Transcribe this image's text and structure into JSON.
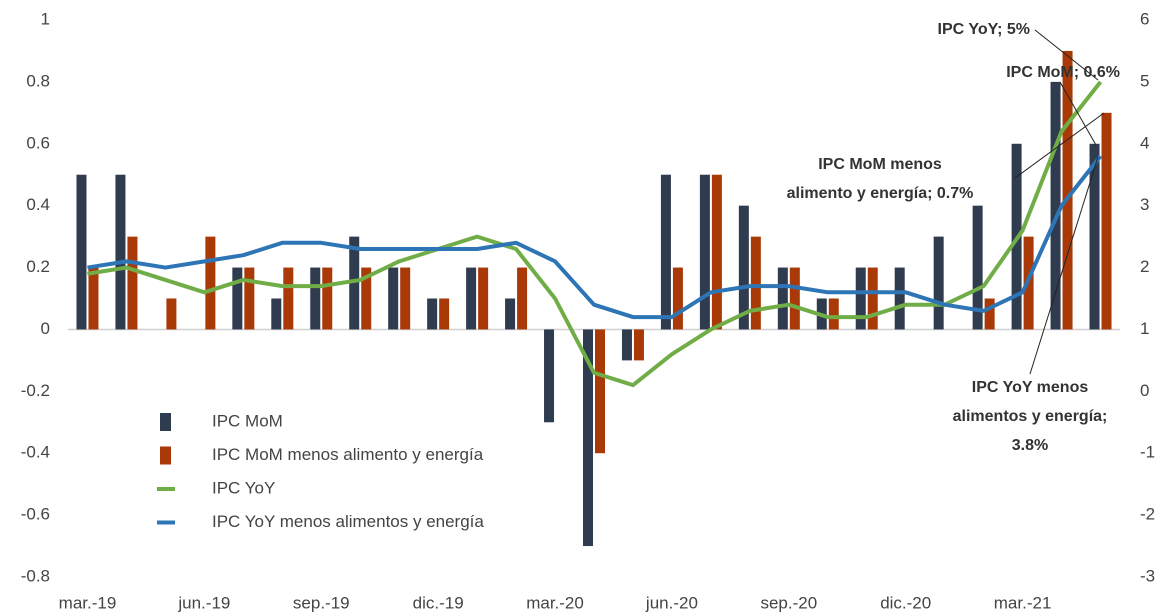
{
  "chart_data": {
    "type": "combo",
    "categories": [
      "mar.-19",
      null,
      null,
      "jun.-19",
      null,
      null,
      "sep.-19",
      null,
      null,
      "dic.-19",
      null,
      null,
      "mar.-20",
      null,
      null,
      "jun.-20",
      null,
      null,
      "sep.-20",
      null,
      null,
      "dic.-20",
      null,
      null,
      "mar.-21",
      null,
      null
    ],
    "series": [
      {
        "name": "IPC MoM",
        "type": "bar",
        "color": "#2f3b4f",
        "values": [
          0.5,
          0.5,
          0,
          0,
          0.2,
          0.1,
          0.2,
          0.3,
          0.2,
          0.1,
          0.2,
          0.1,
          -0.3,
          -0.7,
          -0.1,
          0.5,
          0.5,
          0.4,
          0.2,
          0.1,
          0.2,
          0.2,
          0.3,
          0.4,
          0.6,
          0.8,
          0.6
        ]
      },
      {
        "name": "IPC MoM menos alimento y energía",
        "type": "bar",
        "color": "#a93a08",
        "values": [
          0.2,
          0.3,
          0.1,
          0.3,
          0.2,
          0.2,
          0.2,
          0.2,
          0.2,
          0.1,
          0.2,
          0.2,
          0,
          -0.4,
          -0.1,
          0.2,
          0.5,
          0.3,
          0.2,
          0.1,
          0.2,
          0,
          0,
          0.1,
          0.3,
          0.9,
          0.7
        ]
      },
      {
        "name": "IPC YoY",
        "type": "line",
        "axis": "y2",
        "color": "#70ad47",
        "values": [
          1.9,
          2.0,
          1.8,
          1.6,
          1.8,
          1.7,
          1.7,
          1.8,
          2.1,
          2.3,
          2.5,
          2.3,
          1.5,
          0.3,
          0.1,
          0.6,
          1.0,
          1.3,
          1.4,
          1.2,
          1.2,
          1.4,
          1.4,
          1.7,
          2.6,
          4.2,
          5.0
        ]
      },
      {
        "name": "IPC YoY menos alimentos y energía",
        "type": "line",
        "axis": "y2",
        "color": "#2e75b6",
        "values": [
          2.0,
          2.1,
          2.0,
          2.1,
          2.2,
          2.4,
          2.4,
          2.3,
          2.3,
          2.3,
          2.3,
          2.4,
          2.1,
          1.4,
          1.2,
          1.2,
          1.6,
          1.7,
          1.7,
          1.6,
          1.6,
          1.6,
          1.4,
          1.3,
          1.6,
          3.0,
          3.8
        ]
      }
    ],
    "ylim": [
      -0.8,
      1
    ],
    "yticks": [
      -0.8,
      -0.6,
      -0.4,
      -0.2,
      0,
      0.2,
      0.4,
      0.6,
      0.8,
      1
    ],
    "y2lim": [
      -3,
      6
    ],
    "y2ticks": [
      -3,
      -2,
      -1,
      0,
      1,
      2,
      3,
      4,
      5,
      6
    ],
    "legend": "center-left",
    "annotations": [
      [
        "IPC YoY; 5%"
      ],
      [
        "IPC MoM; 0.6%"
      ],
      [
        "IPC MoM menos",
        "alimento y energía; 0.7%"
      ],
      [
        "IPC YoY menos",
        "alimentos y energía;",
        "3.8%"
      ]
    ]
  }
}
